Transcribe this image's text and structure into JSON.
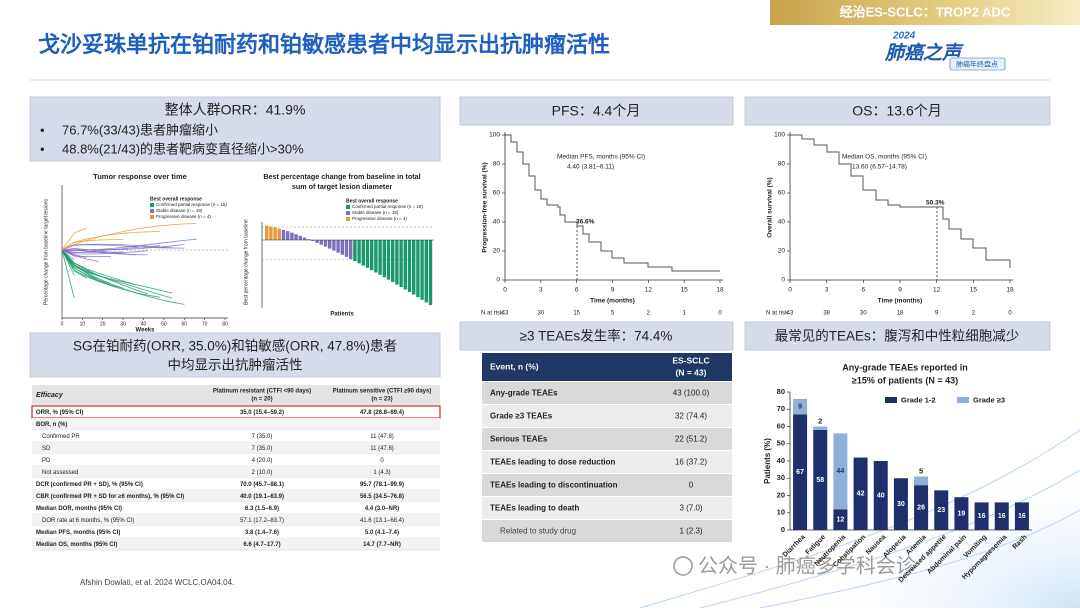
{
  "header": {
    "tag": "经治ES-SCLC：TROP2  ADC",
    "title": "戈沙妥珠单抗在铂耐药和铂敏感患者中均显示出抗肿瘤活性",
    "logo_year": "2024",
    "logo_name": "肺癌之声",
    "logo_sub": "肺癌年终盘点"
  },
  "orr_panel": {
    "heading": "整体人群ORR：41.9%",
    "bullets": [
      "76.7%(33/43)患者肿瘤缩小",
      "48.8%(21/43)的患者靶病变直径缩小>30%"
    ]
  },
  "spider": {
    "title": "Tumor response over time",
    "legend_title": "Best overall response",
    "legend": [
      "Confirmed partial response (n = 18)",
      "Stable disease (n = 18)",
      "Progressive disease (n = 4)"
    ],
    "x_label": "Weeks",
    "y_label": "Percentage change from baseline target lesions",
    "xticks": [
      0,
      10,
      20,
      30,
      40,
      50,
      60,
      70,
      80
    ]
  },
  "waterfall": {
    "title": [
      "Best percentage change from baseline in total",
      "sum of target lesion diameter"
    ],
    "legend_title": "Best overall response",
    "legend": [
      "Confirmed partial response (n = 18)",
      "Stable disease (n = 18)",
      "Progressive disease (n = 4)"
    ],
    "x_label": "Patients",
    "y_label": "Best percentage change from baseline"
  },
  "subgroup_panel": {
    "lines": [
      "SG在铂耐药(ORR, 35.0%)和铂敏感(ORR, 47.8%)患者",
      "中均显示出抗肿瘤活性"
    ]
  },
  "efficacy_table": {
    "columns": [
      "Efficacy",
      "Platinum resistant (CTFI <90 days)",
      "Platinum sensitive (CTFI ≥90 days)"
    ],
    "column_n": [
      "(n = 20)",
      "(n = 23)"
    ],
    "rows": [
      {
        "label": "ORR, % (95% CI)",
        "values": [
          "35.0 (15.4–59.2)",
          "47.8 (26.8–69.4)"
        ],
        "highlight": true
      },
      {
        "label": "BOR, n (%)"
      },
      {
        "label": "Confirmed PR",
        "values": [
          "7 (35.0)",
          "11 (47.8)"
        ],
        "indent": true
      },
      {
        "label": "SD",
        "values": [
          "7 (35.0)",
          "11 (47.8)"
        ],
        "indent": true
      },
      {
        "label": "PD",
        "values": [
          "4 (20.0)",
          "0"
        ],
        "indent": true
      },
      {
        "label": "Not assessed",
        "values": [
          "2 (10.0)",
          "1 (4.3)"
        ],
        "indent": true
      },
      {
        "label": "DCR (confirmed PR + SD), % (95% CI)",
        "values": [
          "70.0 (45.7–88.1)",
          "95.7 (78.1–99.9)"
        ]
      },
      {
        "label": "CBR (confirmed PR + SD for ≥6 months), % (95% CI)",
        "values": [
          "40.0 (19.1–63.9)",
          "56.5 (34.5–76.8)"
        ]
      },
      {
        "label": "Median DOR, months (95% CI)",
        "values": [
          "6.3 (1.5–6.9)",
          "4.4 (3.0–NR)"
        ]
      },
      {
        "label": "DOR rate at 6 months, % (95% CI)",
        "values": [
          "57.1 (17.2–83.7)",
          "41.6 (13.1–68.4)"
        ],
        "indent": true
      },
      {
        "label": "Median PFS, months (95% CI)",
        "values": [
          "3.8 (1.4–7.6)",
          "5.0 (4.1–7.4)"
        ]
      },
      {
        "label": "Median OS, months (95% CI)",
        "values": [
          "6.6 (4.7–17.7)",
          "14.7 (7.7–NR)"
        ]
      }
    ]
  },
  "pfs": {
    "heading": "PFS：4.4个月",
    "y_label": "Progression-free survival (%)",
    "x_label": "Time (months)",
    "median_label": "Median PFS, months (95% CI)",
    "median_value": "4.40 (3.81–6.11)",
    "point_label": "36.6%",
    "xlim": [
      0,
      18
    ],
    "ylim": [
      0,
      100
    ],
    "xticks": [
      0,
      3,
      6,
      9,
      12,
      15,
      18
    ],
    "yticks": [
      0,
      20,
      40,
      60,
      80,
      100
    ],
    "at_risk_label": "N at risk",
    "at_risk": [
      43,
      30,
      15,
      5,
      2,
      1,
      0
    ]
  },
  "os": {
    "heading": "OS：13.6个月",
    "y_label": "Overall survival (%)",
    "x_label": "Time (months)",
    "median_label": "Median OS, months (95% CI)",
    "median_value": "13.60 (6.57–14.78)",
    "point_label": "50.3%",
    "xlim": [
      0,
      18
    ],
    "ylim": [
      0,
      100
    ],
    "xticks": [
      0,
      3,
      6,
      9,
      12,
      15,
      18
    ],
    "yticks": [
      0,
      20,
      40,
      60,
      80,
      100
    ],
    "at_risk_label": "N at risk",
    "at_risk": [
      43,
      38,
      30,
      18,
      9,
      2,
      0
    ]
  },
  "safety_panel": {
    "heading": "≥3 TEAEs发生率：74.4%"
  },
  "safety_table": {
    "columns": [
      "Event, n (%)",
      "ES-SCLC",
      "(N = 43)"
    ],
    "rows": [
      {
        "label": "Any-grade TEAEs",
        "value": "43 (100.0)"
      },
      {
        "label": "Grade ≥3 TEAEs",
        "value": "32 (74.4)"
      },
      {
        "label": "Serious TEAEs",
        "value": "22 (51.2)"
      },
      {
        "label": "TEAEs leading to dose reduction",
        "value": "16 (37.2)"
      },
      {
        "label": "TEAEs leading to discontinuation",
        "value": "0"
      },
      {
        "label": "TEAEs leading to death",
        "value": "3 (7.0)"
      },
      {
        "label": "Related to study drug",
        "value": "1 (2.3)",
        "indent": true
      }
    ]
  },
  "teae_panel": {
    "heading": "最常见的TEAEs：腹泻和中性粒细胞减少"
  },
  "teae_chart": {
    "type": "bar",
    "stacked": true,
    "title": [
      "Any-grade TEAEs reported in",
      "≥15% of patients (N = 43)"
    ],
    "y_label": "Patients (%)",
    "categories": [
      "Diarrhea",
      "Fatigue",
      "Neutropenia",
      "Constipation",
      "Nausea",
      "Alopecia",
      "Anemia",
      "Decreased appetite",
      "Abdominal pain",
      "Vomiting",
      "Hypomagnesemia",
      "Rash"
    ],
    "series": [
      {
        "name": "Grade 1-2",
        "color": "#1f2f6b",
        "values": [
          67,
          58,
          12,
          42,
          40,
          30,
          26,
          23,
          19,
          16,
          16,
          16
        ]
      },
      {
        "name": "Grade ≥3",
        "color": "#8fb0d9",
        "values": [
          9,
          2,
          44,
          null,
          null,
          null,
          5,
          null,
          null,
          null,
          null,
          null
        ]
      }
    ],
    "ylim": [
      0,
      80
    ],
    "yticks": [
      0,
      10,
      20,
      30,
      40,
      50,
      60,
      70,
      80
    ]
  },
  "footnote": "Afshin Dowlati, et al. 2024 WCLC.OA04.04.",
  "watermark": "公众号 · 肺癌多学科会诊"
}
